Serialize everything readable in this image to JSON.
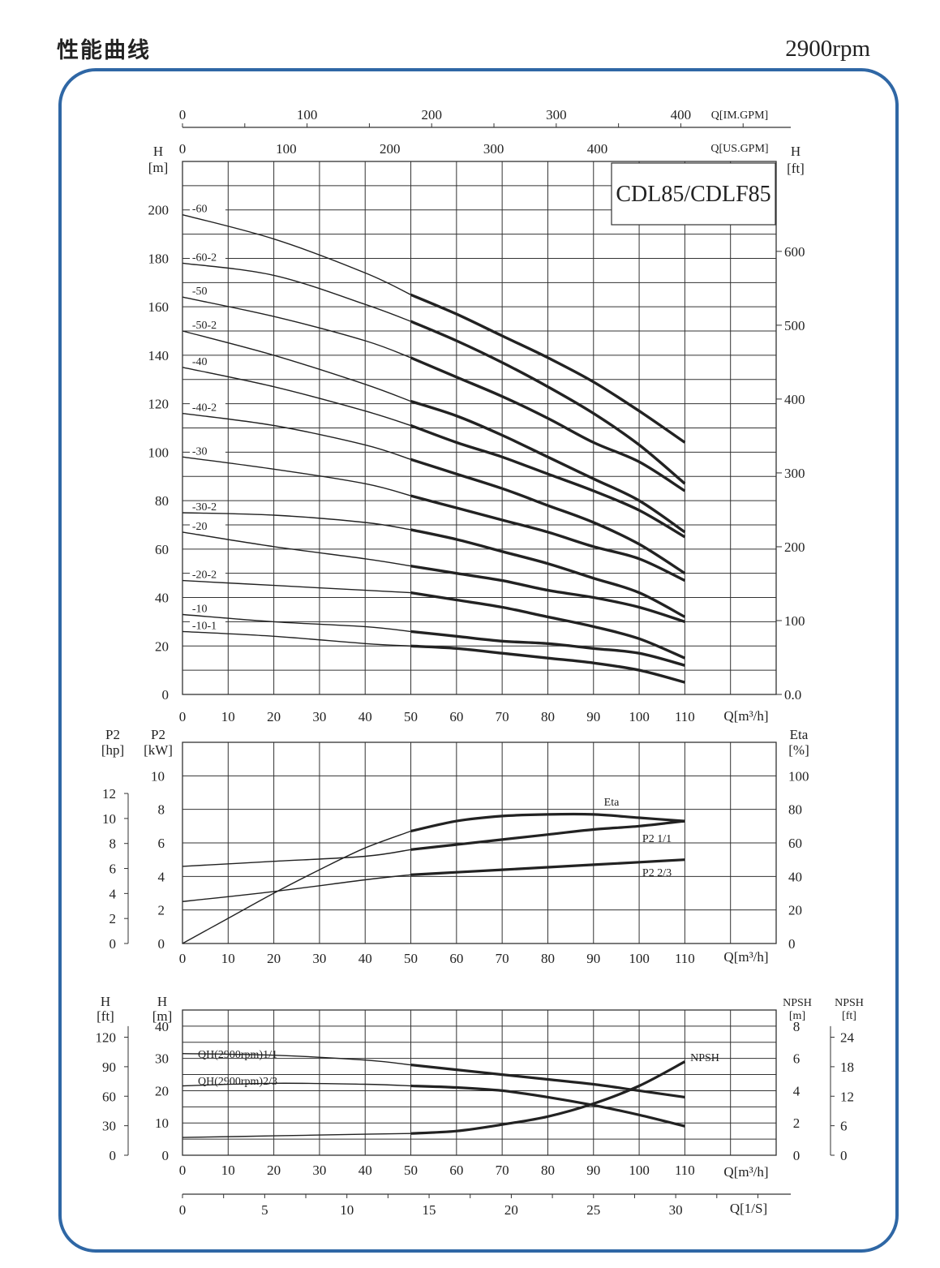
{
  "page": {
    "title": "性能曲线",
    "speed": "2900rpm",
    "model": "CDL85/CDLF85",
    "frame_color": "#2f67a5"
  },
  "chart_data": [
    {
      "type": "line",
      "title": "",
      "model": "CDL85/CDLF85",
      "xlabel": "Q[m³/h]",
      "ylabel": "H[m]",
      "ylabel_right": "H[ft]",
      "top_axis_1": {
        "label": "Q[IM.GPM]",
        "ticks": [
          "0",
          "100",
          "200",
          "300",
          "400"
        ]
      },
      "top_axis_2": {
        "label": "Q[US.GPM]",
        "ticks": [
          "0",
          "100",
          "200",
          "300",
          "400"
        ]
      },
      "xlim": [
        0,
        130
      ],
      "ylim": [
        0,
        220
      ],
      "x_ticks": [
        "0",
        "10",
        "20",
        "30",
        "40",
        "50",
        "60",
        "70",
        "80",
        "90",
        "100",
        "110"
      ],
      "y_ticks": [
        "0",
        "20",
        "40",
        "60",
        "80",
        "100",
        "120",
        "140",
        "160",
        "180",
        "200"
      ],
      "y_right_ticks": [
        "0.0",
        "100",
        "200",
        "300",
        "400",
        "500",
        "600"
      ],
      "grid": true,
      "series": [
        {
          "name": "-60",
          "x": [
            0,
            20,
            40,
            50,
            60,
            70,
            80,
            90,
            100,
            110
          ],
          "y": [
            198,
            188,
            174,
            165,
            157,
            148,
            139,
            129,
            117,
            104
          ]
        },
        {
          "name": "-60-2",
          "x": [
            0,
            20,
            40,
            50,
            60,
            70,
            80,
            90,
            100,
            110
          ],
          "y": [
            178,
            173,
            161,
            154,
            146,
            137,
            127,
            116,
            103,
            87
          ]
        },
        {
          "name": "-50",
          "x": [
            0,
            20,
            40,
            50,
            60,
            70,
            80,
            90,
            100,
            110
          ],
          "y": [
            164,
            156,
            146,
            139,
            131,
            123,
            114,
            104,
            96,
            84
          ]
        },
        {
          "name": "-50-2",
          "x": [
            0,
            20,
            40,
            50,
            60,
            70,
            80,
            90,
            100,
            110
          ],
          "y": [
            150,
            140,
            128,
            121,
            115,
            107,
            98,
            89,
            80,
            67
          ]
        },
        {
          "name": "-40",
          "x": [
            0,
            20,
            40,
            50,
            60,
            70,
            80,
            90,
            100,
            110
          ],
          "y": [
            135,
            127,
            117,
            111,
            104,
            98,
            91,
            84,
            76,
            65
          ]
        },
        {
          "name": "-40-2",
          "x": [
            0,
            20,
            40,
            50,
            60,
            70,
            80,
            90,
            100,
            110
          ],
          "y": [
            116,
            111,
            103,
            97,
            91,
            85,
            78,
            71,
            62,
            50
          ]
        },
        {
          "name": "-30",
          "x": [
            0,
            20,
            40,
            50,
            60,
            70,
            80,
            90,
            100,
            110
          ],
          "y": [
            98,
            93,
            87,
            82,
            77,
            72,
            67,
            61,
            56,
            47
          ]
        },
        {
          "name": "-30-2",
          "x": [
            0,
            20,
            40,
            50,
            60,
            70,
            80,
            90,
            100,
            110
          ],
          "y": [
            75,
            74,
            71,
            68,
            64,
            59,
            54,
            48,
            42,
            32
          ]
        },
        {
          "name": "-20",
          "x": [
            0,
            20,
            40,
            50,
            60,
            70,
            80,
            90,
            100,
            110
          ],
          "y": [
            67,
            61,
            56,
            53,
            50,
            47,
            43,
            40,
            36,
            30
          ]
        },
        {
          "name": "-20-2",
          "x": [
            0,
            20,
            40,
            50,
            60,
            70,
            80,
            90,
            100,
            110
          ],
          "y": [
            47,
            45,
            43,
            42,
            39,
            36,
            32,
            28,
            23,
            15
          ]
        },
        {
          "name": "-10",
          "x": [
            0,
            20,
            40,
            50,
            60,
            70,
            80,
            90,
            100,
            110
          ],
          "y": [
            33,
            30,
            28,
            26,
            24,
            22,
            21,
            19,
            17,
            12
          ]
        },
        {
          "name": "-10-1",
          "x": [
            0,
            20,
            40,
            50,
            60,
            70,
            80,
            90,
            100,
            110
          ],
          "y": [
            26,
            24,
            21,
            20,
            19,
            17,
            15,
            13,
            10,
            5
          ]
        }
      ]
    },
    {
      "type": "line",
      "title": "",
      "xlabel": "Q[m³/h]",
      "ylabel": "P2 [kW]",
      "ylabel_left2": "P2 [hp]",
      "ylabel_right": "Eta [%]",
      "xlim": [
        0,
        130
      ],
      "ylim": [
        0,
        12
      ],
      "x_ticks": [
        "0",
        "10",
        "20",
        "30",
        "40",
        "50",
        "60",
        "70",
        "80",
        "90",
        "100",
        "110"
      ],
      "y_ticks": [
        "0",
        "2",
        "4",
        "6",
        "8",
        "10"
      ],
      "y_hp_ticks": [
        "0",
        "2",
        "4",
        "6",
        "8",
        "10",
        "12"
      ],
      "y_right_ticks": [
        "0",
        "20",
        "40",
        "60",
        "80",
        "100"
      ],
      "grid": true,
      "series": [
        {
          "name": "Eta",
          "x": [
            0,
            10,
            20,
            30,
            40,
            50,
            60,
            70,
            80,
            90,
            100,
            110
          ],
          "y": [
            0,
            15,
            30,
            44,
            57,
            67,
            73,
            76,
            77,
            77,
            75,
            73
          ]
        },
        {
          "name": "P2 1/1",
          "x": [
            0,
            20,
            40,
            50,
            60,
            70,
            80,
            90,
            100,
            110
          ],
          "y": [
            4.6,
            4.9,
            5.2,
            5.6,
            5.9,
            6.2,
            6.5,
            6.8,
            7.0,
            7.3
          ]
        },
        {
          "name": "P2 2/3",
          "x": [
            0,
            20,
            40,
            50,
            60,
            70,
            80,
            90,
            100,
            110
          ],
          "y": [
            2.5,
            3.1,
            3.8,
            4.1,
            4.25,
            4.4,
            4.55,
            4.7,
            4.85,
            5.0
          ]
        }
      ]
    },
    {
      "type": "line",
      "title": "",
      "xlabel": "Q[m³/h]",
      "xlabel2": "Q[1/S]",
      "ylabel": "H [m]",
      "ylabel_left2": "H [ft]",
      "ylabel_right": "NPSH [m]",
      "ylabel_right2": "NPSH [ft]",
      "xlim": [
        0,
        130
      ],
      "ylim": [
        0,
        45
      ],
      "x_ticks": [
        "0",
        "10",
        "20",
        "30",
        "40",
        "50",
        "60",
        "70",
        "80",
        "90",
        "100",
        "110"
      ],
      "x2_ticks": [
        "0",
        "5",
        "10",
        "15",
        "20",
        "25",
        "30"
      ],
      "y_ticks": [
        "0",
        "10",
        "20",
        "30",
        "40"
      ],
      "y_ft_ticks": [
        "0",
        "30",
        "60",
        "90",
        "120"
      ],
      "y_right_ticks": [
        "0",
        "2",
        "4",
        "6",
        "8"
      ],
      "y_right2_ticks": [
        "0",
        "6",
        "12",
        "18",
        "24"
      ],
      "grid": true,
      "series": [
        {
          "name": "QH(2900rpm)1/1",
          "x": [
            0,
            20,
            40,
            50,
            60,
            70,
            80,
            90,
            100,
            110
          ],
          "y": [
            31.5,
            31,
            29.5,
            28,
            26.5,
            25,
            23.5,
            22,
            20,
            18
          ]
        },
        {
          "name": "QH(2900rpm)2/3",
          "x": [
            0,
            20,
            40,
            50,
            60,
            70,
            80,
            90,
            100,
            110
          ],
          "y": [
            21.5,
            22.3,
            22,
            21.5,
            21,
            20,
            18,
            15.5,
            12.5,
            9
          ]
        },
        {
          "name": "NPSH",
          "x": [
            0,
            20,
            40,
            50,
            60,
            70,
            80,
            90,
            100,
            110
          ],
          "y": [
            1.1,
            1.2,
            1.3,
            1.35,
            1.5,
            1.9,
            2.4,
            3.2,
            4.3,
            5.8
          ]
        }
      ]
    }
  ]
}
